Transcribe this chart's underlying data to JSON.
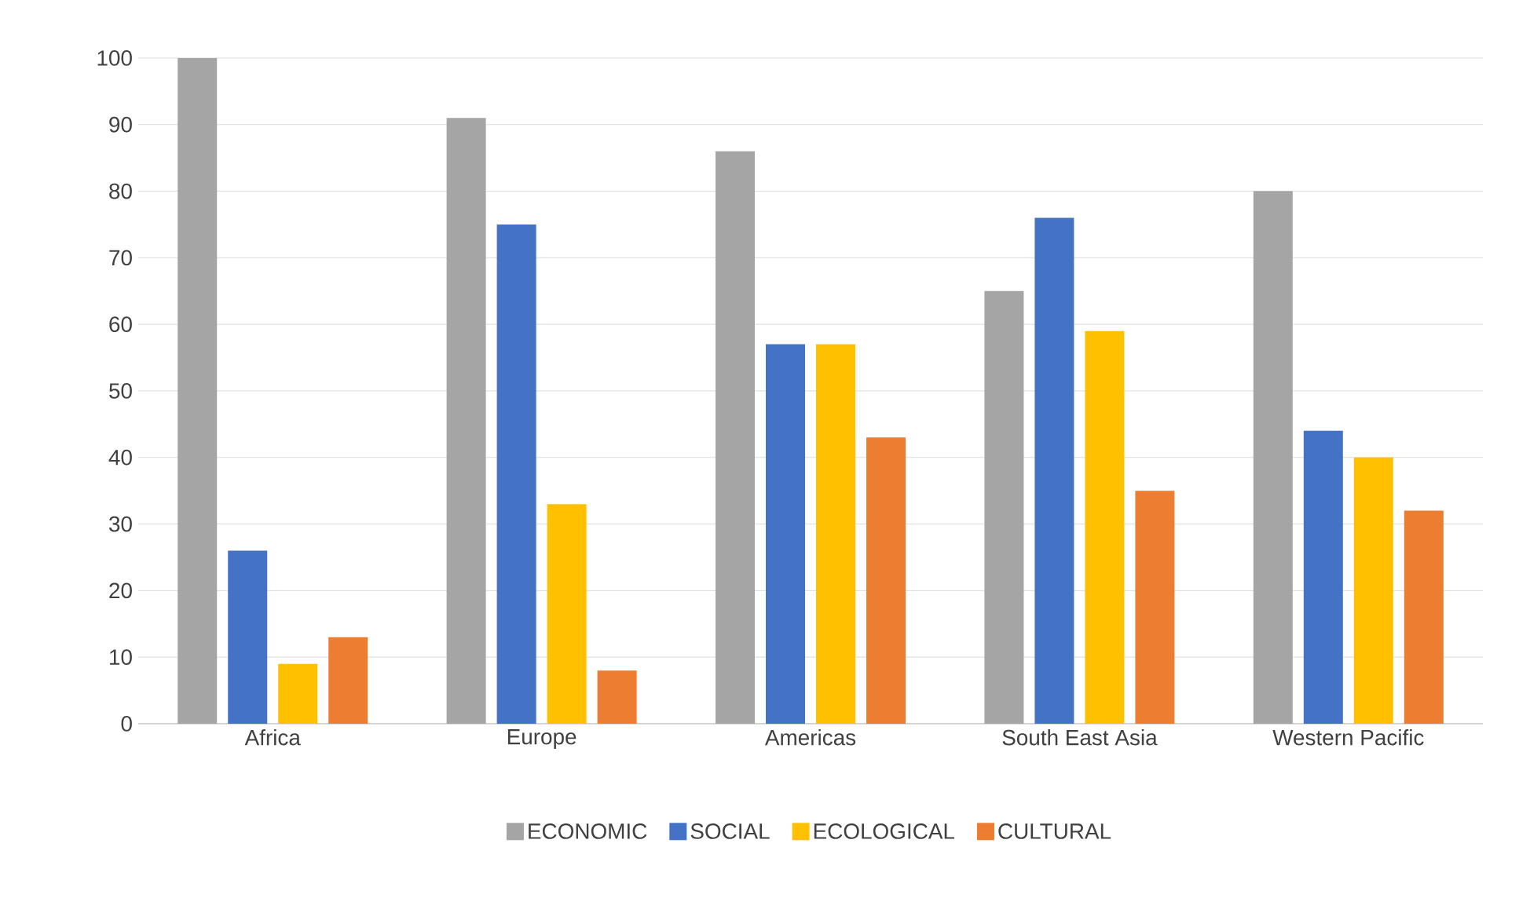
{
  "chart_data": {
    "type": "bar",
    "categories": [
      "Africa",
      "Europe",
      "Americas",
      "South East Asia",
      "Western Pacific"
    ],
    "series": [
      {
        "name": "ECONOMIC",
        "color": "#a5a5a5",
        "values": [
          100,
          91,
          86,
          65,
          80
        ]
      },
      {
        "name": "SOCIAL",
        "color": "#4472c4",
        "values": [
          26,
          75,
          57,
          76,
          44
        ]
      },
      {
        "name": "ECOLOGICAL",
        "color": "#ffc000",
        "values": [
          9,
          33,
          57,
          59,
          40
        ]
      },
      {
        "name": "CULTURAL",
        "color": "#ed7d31",
        "values": [
          13,
          8,
          43,
          35,
          32
        ]
      }
    ],
    "ylim": [
      0,
      100
    ],
    "yticks": [
      0,
      10,
      20,
      30,
      40,
      50,
      60,
      70,
      80,
      90,
      100
    ],
    "grid": "y",
    "legend": "bottom"
  }
}
